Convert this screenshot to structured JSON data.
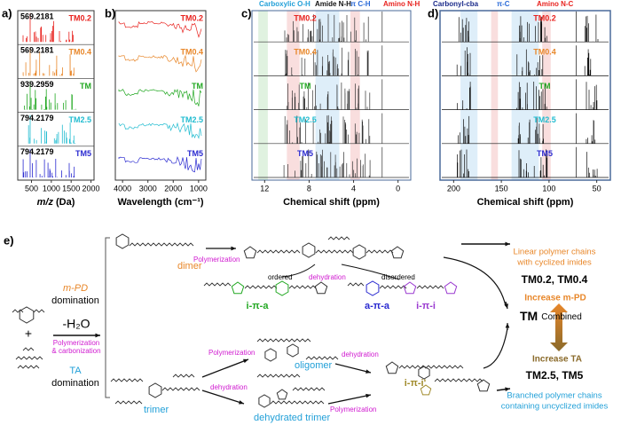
{
  "panels": [
    {
      "label": "a)",
      "xlabel": "m/z",
      "xunit": "(Da)",
      "xticks": [
        "500",
        "1000",
        "1500",
        "2000"
      ],
      "traces": [
        {
          "name": "TM0.2",
          "peak": "569.2181"
        },
        {
          "name": "TM0.4",
          "peak": "569.2181"
        },
        {
          "name": "TM",
          "peak": "939.2959"
        },
        {
          "name": "TM2.5",
          "peak": "794.2179"
        },
        {
          "name": "TM5",
          "peak": "794.2179"
        }
      ]
    },
    {
      "label": "b)",
      "xlabel": "Wavelength (cm⁻¹)",
      "xticks": [
        "4000",
        "3000",
        "2000",
        "1000"
      ],
      "traces": [
        {
          "name": "TM0.2"
        },
        {
          "name": "TM0.4"
        },
        {
          "name": "TM"
        },
        {
          "name": "TM2.5"
        },
        {
          "name": "TM5"
        }
      ]
    },
    {
      "label": "c)",
      "xlabel": "Chemical shift (ppm)",
      "xticks": [
        "12",
        "8",
        "4",
        "0"
      ],
      "bands": [
        "Carboxylic O-H",
        "Amide N-H",
        "π C-H",
        "Amino N-H"
      ],
      "traces": [
        {
          "name": "TM0.2"
        },
        {
          "name": "TM0.4"
        },
        {
          "name": "TM"
        },
        {
          "name": "TM2.5"
        },
        {
          "name": "TM5"
        }
      ]
    },
    {
      "label": "d)",
      "xlabel": "Chemical shift (ppm)",
      "xticks": [
        "200",
        "150",
        "100",
        "50"
      ],
      "bands": [
        "Carbonyl-cba",
        "π-C",
        "Amino N-C"
      ],
      "traces": [
        {
          "name": "TM0.2"
        },
        {
          "name": "TM0.4"
        },
        {
          "name": "TM"
        },
        {
          "name": "TM2.5"
        },
        {
          "name": "TM5"
        }
      ]
    }
  ],
  "scheme": {
    "label": "e)",
    "mpd_domination": {
      "agent": "m-PD",
      "rest": "domination"
    },
    "water": "-H₂O",
    "process": [
      "Polymerization",
      "& carbonization"
    ],
    "ta_domination": {
      "agent": "TA",
      "rest": "domination"
    },
    "dimer": "dimer",
    "trimer": "trimer",
    "step_dimer": "Polymerization",
    "ordered": "ordered",
    "dehydration_top": "dehydration",
    "disordered": "disordered",
    "motifs": [
      "i-π-a",
      "a-π-a",
      "i-π-i"
    ],
    "step_trimer_poly": "Polymerization",
    "step_trimer_dehyd": "dehydration",
    "oligomer": "oligomer",
    "dehydrated_trimer": "dehydrated trimer",
    "step_oligomer": "dehydration",
    "step_dehydrated": "Polymerization",
    "motif_branched": "i-π-i'",
    "linear": [
      "Linear polymer chains",
      "with cyclized imides"
    ],
    "linear_samples": "TM0.2, TM0.4",
    "increase_mpd": "Increase m-PD",
    "combined": {
      "name": "TM",
      "rest": "Combined"
    },
    "increase_ta": "Increase TA",
    "branched_samples": "TM2.5, TM5",
    "branched": [
      "Branched polymer chains",
      "containing uncyclized imides"
    ]
  }
}
